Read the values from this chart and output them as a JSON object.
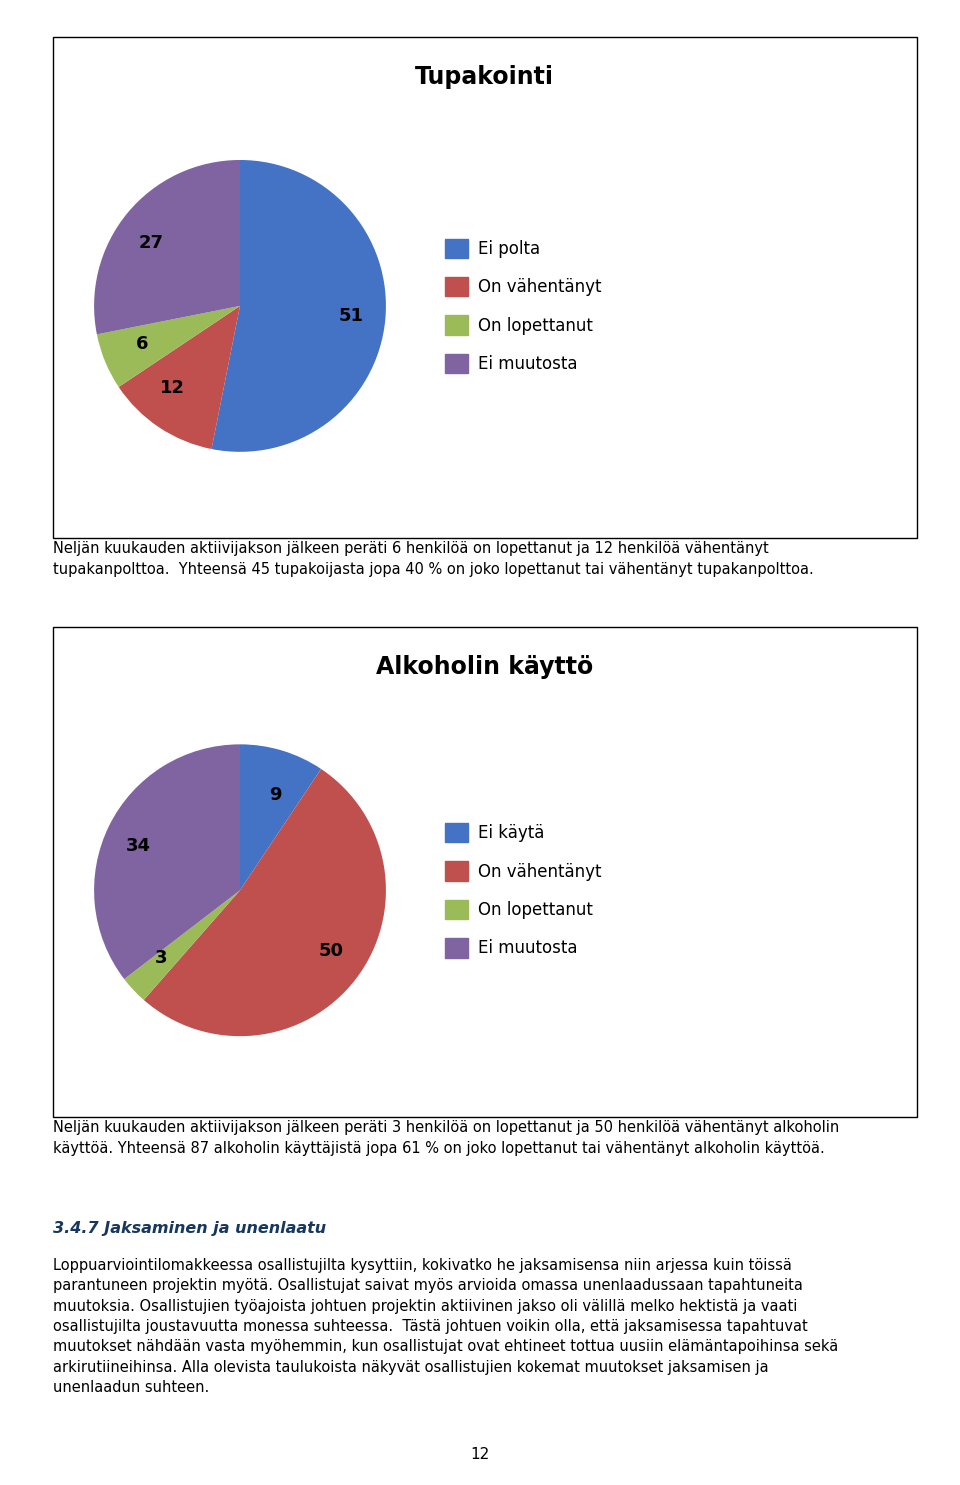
{
  "page_bg": "#ffffff",
  "page_number": "12",
  "chart1_title": "Tupakointi",
  "chart1_values": [
    51,
    12,
    6,
    27
  ],
  "chart1_labels": [
    "51",
    "12",
    "6",
    "27"
  ],
  "chart1_legend": [
    "Ei polta",
    "On vähentänyt",
    "On lopettanut",
    "Ei muutosta"
  ],
  "chart1_colors": [
    "#4472C4",
    "#C0504D",
    "#9BBB59",
    "#8064A2"
  ],
  "chart1_startangle": 90,
  "chart1_text": "Neljän kuukauden aktiivijakson jälkeen peräti 6 henkilöä on lopettanut ja 12 henkilöä vähentänyt\ntupakanpolttoa.  Yhteensä 45 tupakoijasta jopa 40 % on joko lopettanut tai vähentänyt tupakanpolttoa.",
  "chart2_title": "Alkoholin käyttö",
  "chart2_values": [
    9,
    50,
    3,
    34
  ],
  "chart2_labels": [
    "9",
    "50",
    "3",
    "34"
  ],
  "chart2_legend": [
    "Ei käytä",
    "On vähentänyt",
    "On lopettanut",
    "Ei muutosta"
  ],
  "chart2_colors": [
    "#4472C4",
    "#C0504D",
    "#9BBB59",
    "#8064A2"
  ],
  "chart2_startangle": 90,
  "chart2_text": "Neljän kuukauden aktiivijakson jälkeen peräti 3 henkilöä on lopettanut ja 50 henkilöä vähentänyt alkoholin\nkäyttöä. Yhteensä 87 alkoholin käyttäjistä jopa 61 % on joko lopettanut tai vähentänyt alkoholin käyttöä.",
  "section_title": "3.4.7 Jaksaminen ja unenlaatu",
  "section_title_color": "#17375E",
  "body_lines": [
    "Loppuarviointilomakkeessa osallistujilta kysyttiin, kokivatko he jaksamisensa niin arjessa kuin töissä",
    "parantuneen projektin myötä. Osallistujat saivat myös arvioida omassa unenlaadussaan tapahtuneita",
    "muutoksia. Osallistujien työajoista johtuen projektin aktiivinen jakso oli välillä melko hektistä ja vaati",
    "osallistujilta joustavuutta monessa suhteessa.  Tästä johtuen voikin olla, että jaksamisessa tapahtuvat",
    "muutokset nähdään vasta myöhemmin, kun osallistujat ovat ehtineet tottua uusiin elämäntapoihinsa sekä",
    "arkirutiineihinsa. Alla olevista taulukoista näkyvät osallistujien kokemat muutokset jaksamisen ja",
    "unenlaadun suhteen."
  ]
}
